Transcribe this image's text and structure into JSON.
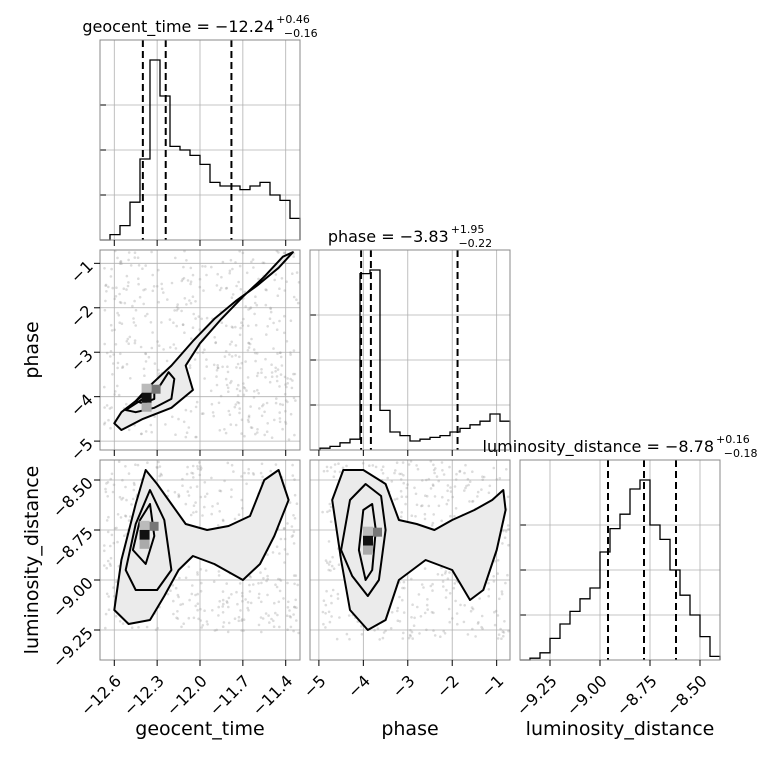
{
  "chart_data": {
    "type": "corner",
    "parameters": [
      "geocent_time",
      "phase",
      "luminosity_distance"
    ],
    "axis_labels": {
      "geocent_time": "geocent_time",
      "phase": "phase",
      "luminosity_distance": "luminosity_distance"
    },
    "titles": [
      {
        "param": "geocent_time",
        "text": "geocent_time = −12.24",
        "sup": "+0.46",
        "sub": "−0.16",
        "median": -12.24,
        "plus": 0.46,
        "minus": 0.16
      },
      {
        "param": "phase",
        "text": "phase = −3.83",
        "sup": "+1.95",
        "sub": "−0.22",
        "median": -3.83,
        "plus": 1.95,
        "minus": 0.22
      },
      {
        "param": "luminosity_distance",
        "text": "luminosity_distance = −8.78",
        "sup": "+0.16",
        "sub": "−0.18",
        "median": -8.78,
        "plus": 0.16,
        "minus": 0.18
      }
    ],
    "ranges": {
      "geocent_time": [
        -12.7,
        -11.3
      ],
      "phase": [
        -5.2,
        -0.7
      ],
      "luminosity_distance": [
        -9.4,
        -8.4
      ]
    },
    "ticks": {
      "geocent_time": [
        {
          "v": -12.6,
          "label": "−12.6"
        },
        {
          "v": -12.3,
          "label": "−12.3"
        },
        {
          "v": -12.0,
          "label": "−12.0"
        },
        {
          "v": -11.7,
          "label": "−11.7"
        },
        {
          "v": -11.4,
          "label": "−11.4"
        }
      ],
      "phase": [
        {
          "v": -5,
          "label": "−5"
        },
        {
          "v": -4,
          "label": "−4"
        },
        {
          "v": -3,
          "label": "−3"
        },
        {
          "v": -2,
          "label": "−2"
        },
        {
          "v": -1,
          "label": "−1"
        }
      ],
      "luminosity_distance": [
        {
          "v": -9.25,
          "label": "−9.25"
        },
        {
          "v": -9.0,
          "label": "−9.00"
        },
        {
          "v": -8.75,
          "label": "−8.75"
        },
        {
          "v": -8.5,
          "label": "−8.50"
        }
      ]
    },
    "histograms": {
      "geocent_time": {
        "bin_edges": [
          -12.7,
          -12.63,
          -12.56,
          -12.49,
          -12.42,
          -12.35,
          -12.28,
          -12.21,
          -12.14,
          -12.07,
          -12.0,
          -11.93,
          -11.86,
          -11.79,
          -11.72,
          -11.65,
          -11.58,
          -11.51,
          -11.44,
          -11.37,
          -11.3
        ],
        "heights": [
          0.0,
          0.03,
          0.08,
          0.21,
          0.45,
          1.0,
          0.8,
          0.52,
          0.5,
          0.47,
          0.42,
          0.32,
          0.3,
          0.3,
          0.28,
          0.3,
          0.32,
          0.25,
          0.22,
          0.12
        ]
      },
      "phase": {
        "bin_edges": [
          -5.2,
          -4.975,
          -4.75,
          -4.525,
          -4.3,
          -4.075,
          -3.85,
          -3.625,
          -3.4,
          -3.175,
          -2.95,
          -2.725,
          -2.5,
          -2.275,
          -2.05,
          -1.825,
          -1.6,
          -1.375,
          -1.15,
          -0.925,
          -0.7
        ],
        "heights": [
          0.0,
          0.01,
          0.02,
          0.04,
          0.06,
          0.98,
          1.0,
          0.22,
          0.1,
          0.08,
          0.05,
          0.06,
          0.07,
          0.08,
          0.1,
          0.12,
          0.14,
          0.16,
          0.2,
          0.16
        ]
      },
      "luminosity_distance": {
        "bin_edges": [
          -9.4,
          -9.35,
          -9.3,
          -9.25,
          -9.2,
          -9.15,
          -9.1,
          -9.05,
          -9.0,
          -8.95,
          -8.9,
          -8.85,
          -8.8,
          -8.75,
          -8.7,
          -8.65,
          -8.6,
          -8.55,
          -8.5,
          -8.45,
          -8.4
        ],
        "heights": [
          0.0,
          0.01,
          0.04,
          0.12,
          0.2,
          0.27,
          0.34,
          0.4,
          0.6,
          0.73,
          0.81,
          0.95,
          1.0,
          0.75,
          0.67,
          0.5,
          0.36,
          0.25,
          0.13,
          0.02
        ]
      }
    },
    "quantiles": {
      "geocent_time": [
        -12.4,
        -12.24,
        -11.78
      ],
      "phase": [
        -4.05,
        -3.83,
        -1.88
      ],
      "luminosity_distance": [
        -8.96,
        -8.78,
        -8.62
      ]
    },
    "contours_2d": [
      {
        "x": "geocent_time",
        "y": "phase",
        "levels": [
          [
            [
              -12.6,
              -4.6
            ],
            [
              -12.55,
              -4.35
            ],
            [
              -12.45,
              -4.1
            ],
            [
              -12.35,
              -3.75
            ],
            [
              -12.2,
              -3.3
            ],
            [
              -12.05,
              -2.75
            ],
            [
              -11.9,
              -2.25
            ],
            [
              -11.75,
              -1.85
            ],
            [
              -11.6,
              -1.5
            ],
            [
              -11.45,
              -1.1
            ],
            [
              -11.35,
              -0.75
            ],
            [
              -11.42,
              -0.85
            ],
            [
              -11.55,
              -1.3
            ],
            [
              -11.7,
              -1.75
            ],
            [
              -11.85,
              -2.25
            ],
            [
              -12.0,
              -2.8
            ],
            [
              -12.1,
              -3.3
            ],
            [
              -12.05,
              -3.85
            ],
            [
              -12.2,
              -4.25
            ],
            [
              -12.4,
              -4.5
            ],
            [
              -12.55,
              -4.75
            ]
          ],
          [
            [
              -12.52,
              -4.3
            ],
            [
              -12.4,
              -4.05
            ],
            [
              -12.28,
              -3.75
            ],
            [
              -12.22,
              -3.45
            ],
            [
              -12.18,
              -3.6
            ],
            [
              -12.2,
              -4.05
            ],
            [
              -12.32,
              -4.25
            ],
            [
              -12.45,
              -4.35
            ]
          ],
          [
            [
              -12.45,
              -4.1
            ],
            [
              -12.38,
              -3.92
            ],
            [
              -12.32,
              -3.9
            ],
            [
              -12.32,
              -4.05
            ],
            [
              -12.4,
              -4.15
            ]
          ]
        ]
      },
      {
        "x": "geocent_time",
        "y": "luminosity_distance",
        "levels": [
          [
            [
              -12.6,
              -9.15
            ],
            [
              -12.55,
              -8.9
            ],
            [
              -12.45,
              -8.62
            ],
            [
              -12.38,
              -8.45
            ],
            [
              -12.3,
              -8.52
            ],
            [
              -12.2,
              -8.62
            ],
            [
              -12.1,
              -8.72
            ],
            [
              -11.95,
              -8.75
            ],
            [
              -11.8,
              -8.73
            ],
            [
              -11.65,
              -8.68
            ],
            [
              -11.55,
              -8.5
            ],
            [
              -11.45,
              -8.45
            ],
            [
              -11.38,
              -8.6
            ],
            [
              -11.48,
              -8.78
            ],
            [
              -11.58,
              -8.92
            ],
            [
              -11.7,
              -9.0
            ],
            [
              -11.8,
              -8.96
            ],
            [
              -11.9,
              -8.92
            ],
            [
              -12.05,
              -8.88
            ],
            [
              -12.15,
              -8.95
            ],
            [
              -12.25,
              -9.08
            ],
            [
              -12.35,
              -9.2
            ],
            [
              -12.5,
              -9.22
            ]
          ],
          [
            [
              -12.52,
              -8.95
            ],
            [
              -12.45,
              -8.72
            ],
            [
              -12.35,
              -8.55
            ],
            [
              -12.25,
              -8.7
            ],
            [
              -12.2,
              -8.95
            ],
            [
              -12.3,
              -9.05
            ],
            [
              -12.45,
              -9.05
            ]
          ],
          [
            [
              -12.47,
              -8.85
            ],
            [
              -12.42,
              -8.7
            ],
            [
              -12.35,
              -8.62
            ],
            [
              -12.32,
              -8.78
            ],
            [
              -12.38,
              -8.92
            ]
          ]
        ]
      },
      {
        "x": "phase",
        "y": "luminosity_distance",
        "levels": [
          [
            [
              -4.7,
              -8.6
            ],
            [
              -4.45,
              -8.45
            ],
            [
              -4.0,
              -8.45
            ],
            [
              -3.5,
              -8.52
            ],
            [
              -3.2,
              -8.7
            ],
            [
              -2.8,
              -8.72
            ],
            [
              -2.4,
              -8.75
            ],
            [
              -2.0,
              -8.7
            ],
            [
              -1.5,
              -8.65
            ],
            [
              -1.1,
              -8.6
            ],
            [
              -0.85,
              -8.55
            ],
            [
              -0.8,
              -8.65
            ],
            [
              -1.0,
              -8.85
            ],
            [
              -1.3,
              -9.05
            ],
            [
              -1.6,
              -9.1
            ],
            [
              -2.0,
              -8.95
            ],
            [
              -2.6,
              -8.9
            ],
            [
              -3.2,
              -9.0
            ],
            [
              -3.5,
              -9.2
            ],
            [
              -3.9,
              -9.25
            ],
            [
              -4.3,
              -9.15
            ],
            [
              -4.5,
              -8.9
            ]
          ],
          [
            [
              -4.5,
              -8.85
            ],
            [
              -4.3,
              -8.6
            ],
            [
              -3.95,
              -8.52
            ],
            [
              -3.6,
              -8.58
            ],
            [
              -3.5,
              -8.75
            ],
            [
              -3.65,
              -9.0
            ],
            [
              -3.9,
              -9.08
            ],
            [
              -4.25,
              -8.98
            ]
          ],
          [
            [
              -4.1,
              -8.85
            ],
            [
              -4.0,
              -8.65
            ],
            [
              -3.8,
              -8.62
            ],
            [
              -3.72,
              -8.75
            ],
            [
              -3.8,
              -8.95
            ],
            [
              -3.95,
              -9.0
            ]
          ]
        ]
      }
    ]
  }
}
